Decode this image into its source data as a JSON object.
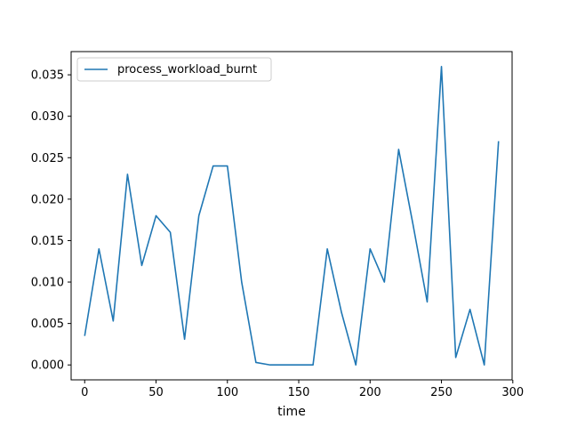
{
  "chart_data": {
    "type": "line",
    "title": "",
    "xlabel": "time",
    "ylabel": "",
    "xlim": [
      -9.5,
      299.5
    ],
    "ylim": [
      -0.0018,
      0.0378
    ],
    "xticks": [
      0,
      50,
      100,
      150,
      200,
      250,
      300
    ],
    "yticks": [
      0.0,
      0.005,
      0.01,
      0.015,
      0.02,
      0.025,
      0.03,
      0.035
    ],
    "ytick_labels": [
      "0.000",
      "0.005",
      "0.010",
      "0.015",
      "0.020",
      "0.025",
      "0.030",
      "0.035"
    ],
    "grid": false,
    "legend_position": "upper-left",
    "series": [
      {
        "name": "process_workload_burnt",
        "color": "#1f77b4",
        "x": [
          0,
          10,
          20,
          30,
          40,
          50,
          60,
          70,
          80,
          90,
          100,
          110,
          120,
          130,
          140,
          150,
          160,
          170,
          180,
          190,
          200,
          210,
          220,
          230,
          240,
          250,
          260,
          270,
          280,
          290
        ],
        "y": [
          0.0035,
          0.014,
          0.0053,
          0.023,
          0.012,
          0.018,
          0.016,
          0.0031,
          0.018,
          0.024,
          0.024,
          0.01,
          0.0003,
          0.0,
          0.0,
          0.0,
          0.0,
          0.014,
          0.0063,
          0.0,
          0.014,
          0.01,
          0.026,
          0.017,
          0.0076,
          0.036,
          0.0009,
          0.0067,
          0.0,
          0.027
        ]
      }
    ]
  }
}
